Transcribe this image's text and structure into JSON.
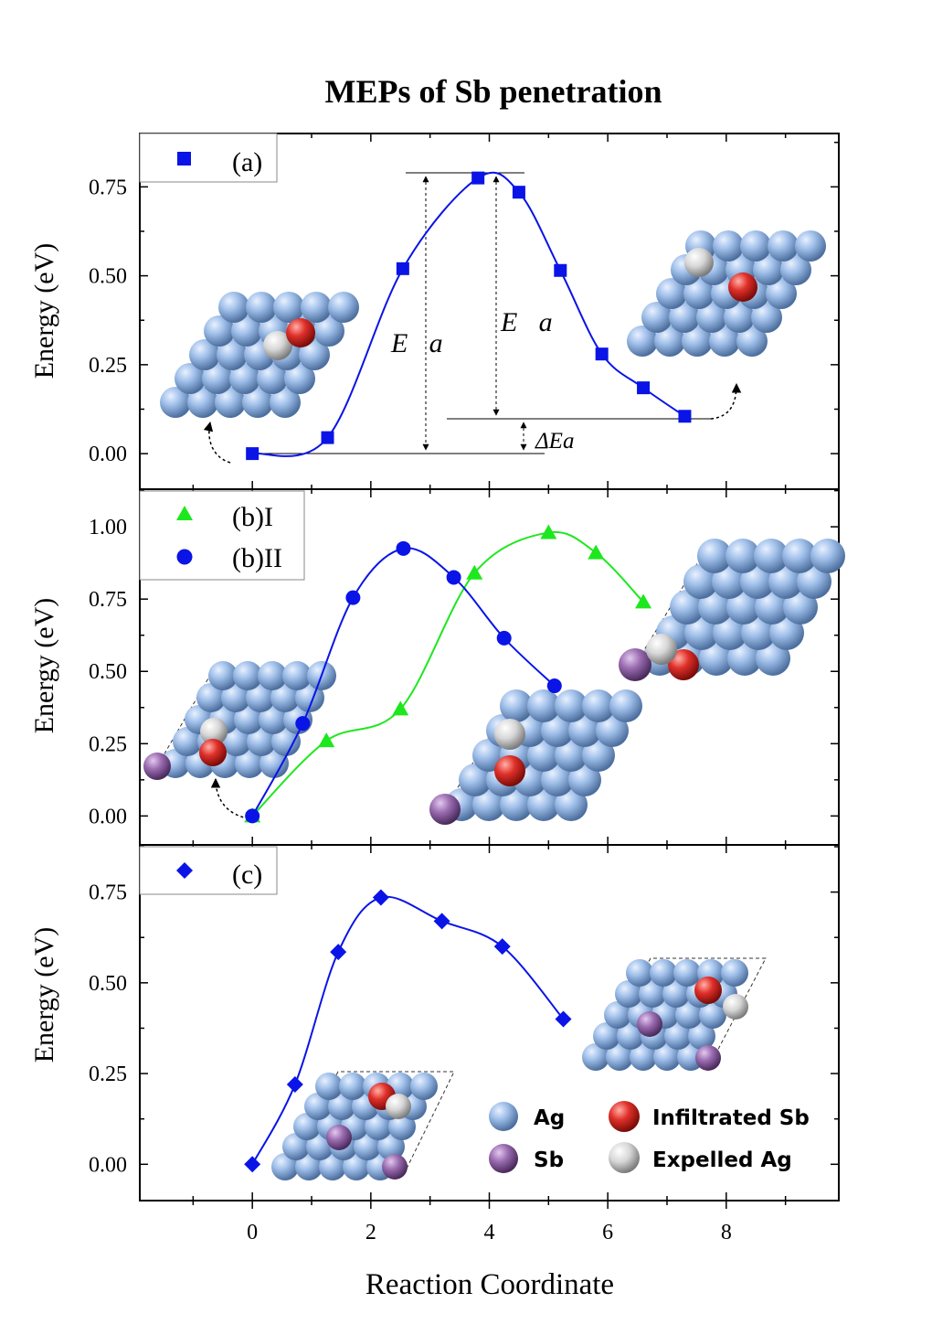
{
  "figure": {
    "title": "MEPs of Sb penetration",
    "xlabel": "Reaction Coordinate"
  },
  "chart_data": [
    {
      "type": "line",
      "panel": "a",
      "ylabel": "Energy (eV)",
      "xlim": [
        -1.9,
        9.9
      ],
      "ylim": [
        -0.1,
        0.9
      ],
      "yticks": [
        "0.00",
        "0.25",
        "0.50",
        "0.75"
      ],
      "xticks": [
        "0",
        "2",
        "4",
        "6",
        "8"
      ],
      "legend": "top-left",
      "series": [
        {
          "name": "(a)",
          "marker": "square",
          "color": "#0a14e6",
          "x": [
            0,
            1.27,
            2.54,
            3.81,
            4.5,
            5.2,
            5.9,
            6.6,
            7.3
          ],
          "y": [
            0.0,
            0.045,
            0.52,
            0.775,
            0.735,
            0.515,
            0.28,
            0.185,
            0.105
          ]
        }
      ],
      "annotations": {
        "forward_barrier": "E⃗a",
        "reverse_barrier": "E⃖a",
        "reaction_energy": "ΔEa"
      }
    },
    {
      "type": "line",
      "panel": "b",
      "ylabel": "Energy (eV)",
      "xlim": [
        -1.9,
        9.9
      ],
      "ylim": [
        -0.1,
        1.13
      ],
      "yticks": [
        "0.00",
        "0.25",
        "0.50",
        "0.75",
        "1.00"
      ],
      "legend": "top-left",
      "series": [
        {
          "name": "(b)I",
          "marker": "triangle",
          "color": "#1de81d",
          "x": [
            0,
            1.25,
            2.5,
            3.75,
            5.0,
            5.8,
            6.6
          ],
          "y": [
            0.0,
            0.26,
            0.37,
            0.84,
            0.98,
            0.91,
            0.74
          ]
        },
        {
          "name": "(b)II",
          "marker": "circle",
          "color": "#0a14e6",
          "x": [
            0,
            0.85,
            1.7,
            2.55,
            3.4,
            4.25,
            5.1
          ],
          "y": [
            0.0,
            0.32,
            0.755,
            0.925,
            0.825,
            0.615,
            0.45
          ]
        }
      ]
    },
    {
      "type": "line",
      "panel": "c",
      "ylabel": "Energy (eV)",
      "xlim": [
        -1.9,
        9.9
      ],
      "ylim": [
        -0.1,
        0.88
      ],
      "yticks": [
        "0.00",
        "0.25",
        "0.50",
        "0.75"
      ],
      "legend": "top-left",
      "series": [
        {
          "name": "(c)",
          "marker": "diamond",
          "color": "#0a14e6",
          "x": [
            0,
            0.72,
            1.45,
            2.17,
            3.2,
            4.22,
            5.25
          ],
          "y": [
            0.0,
            0.22,
            0.585,
            0.735,
            0.67,
            0.6,
            0.4
          ]
        }
      ]
    }
  ],
  "atom_legend": [
    {
      "label": "Ag",
      "color": "#9dbde8"
    },
    {
      "label": "Sb",
      "color": "#9a6cb0"
    },
    {
      "label": "Infiltrated Sb",
      "color": "#e0302a"
    },
    {
      "label": "Expelled Ag",
      "color": "#d6d6d6"
    }
  ]
}
